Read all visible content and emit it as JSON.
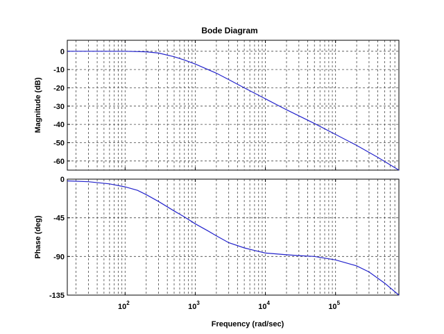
{
  "chart_data": {
    "type": "line",
    "title": "Bode Diagram",
    "xlabel": "Frequency  (rad/sec)",
    "xscale": "log",
    "xlim": [
      15,
      800000
    ],
    "xticks": [
      {
        "base": "10",
        "exp": "2",
        "value": 100
      },
      {
        "base": "10",
        "exp": "3",
        "value": 1000
      },
      {
        "base": "10",
        "exp": "4",
        "value": 10000
      },
      {
        "base": "10",
        "exp": "5",
        "value": 100000
      }
    ],
    "grid": true,
    "panels": [
      {
        "name": "magnitude",
        "ylabel": "Magnitude (dB)",
        "ylim": [
          -65,
          6
        ],
        "yticks": [
          0,
          -10,
          -20,
          -30,
          -40,
          -50,
          -60
        ],
        "series": [
          {
            "color": "#2222cc",
            "x": [
              15,
              50,
              100,
              200,
              300,
              500,
              700,
              1000,
              2000,
              3000,
              5000,
              10000,
              20000,
              50000,
              100000,
              200000,
              400000,
              800000
            ],
            "y": [
              0,
              0,
              0,
              -0.3,
              -1,
              -3,
              -4.8,
              -7,
              -12,
              -15.5,
              -20,
              -26,
              -32,
              -39.5,
              -45.5,
              -51.5,
              -58,
              -65
            ]
          }
        ]
      },
      {
        "name": "phase",
        "ylabel": "Phase (deg)",
        "ylim": [
          -135,
          0
        ],
        "yticks": [
          0,
          -45,
          -90,
          -135
        ],
        "series": [
          {
            "color": "#2222cc",
            "x": [
              15,
              30,
              60,
              100,
              150,
              200,
              300,
              500,
              700,
              1000,
              1500,
              2000,
              3000,
              5000,
              7000,
              10000,
              20000,
              30000,
              50000,
              100000,
              200000,
              300000,
              500000,
              800000
            ],
            "y": [
              -2,
              -3,
              -5.5,
              -9,
              -13,
              -18,
              -26,
              -37,
              -44,
              -52,
              -60,
              -66,
              -74,
              -80,
              -83,
              -86,
              -88,
              -89,
              -90,
              -94,
              -101,
              -108,
              -121,
              -135
            ]
          }
        ]
      }
    ]
  }
}
